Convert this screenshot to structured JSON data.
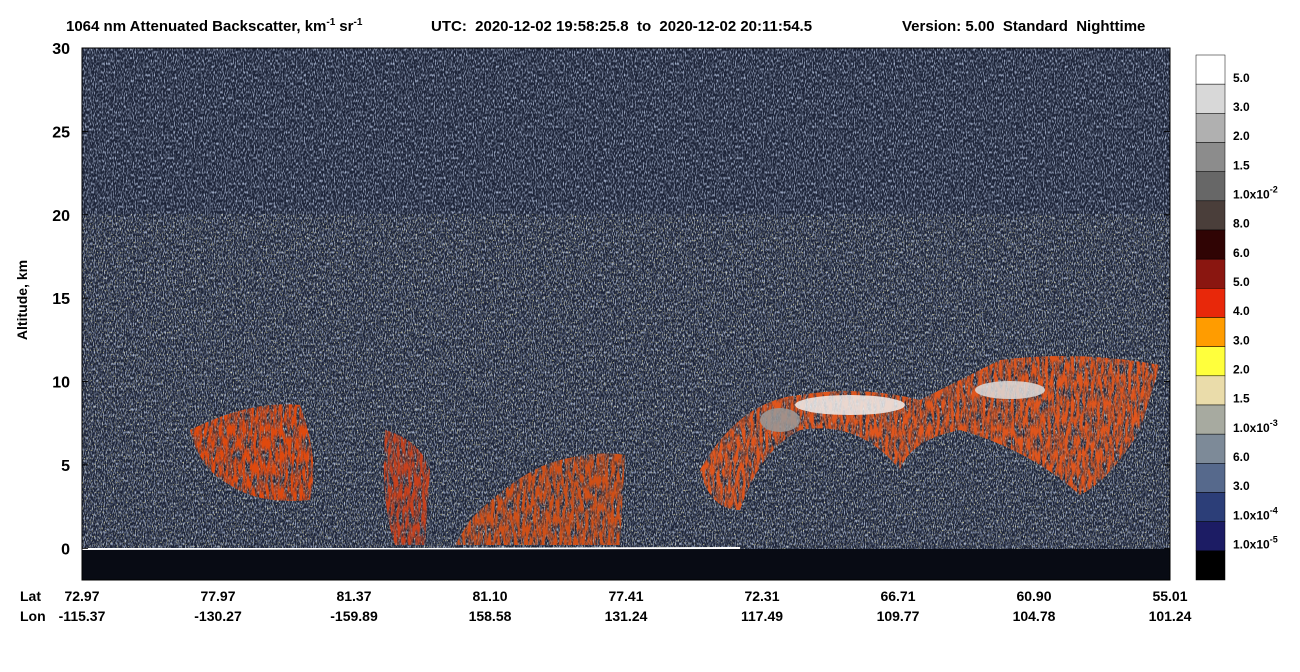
{
  "chart_data": {
    "type": "image",
    "title": {
      "text": "1064 nm Attenuated Backscatter, km",
      "exp1": "-1",
      "unit2": "sr",
      "exp2": "-1"
    },
    "time_range": "UTC:  2020-12-02 19:58:25.8  to  2020-12-02 20:11:54.5",
    "version": "Version: 5.00  Standard  Nighttime",
    "ylabel": "Altitude, km",
    "ylim": [
      -1.9,
      30
    ],
    "yticks": [
      0,
      5,
      10,
      15,
      20,
      25,
      30
    ],
    "x_row_labels": [
      "Lat",
      "Lon"
    ],
    "x_ticks": [
      {
        "lat": "72.97",
        "lon": "-115.37"
      },
      {
        "lat": "77.97",
        "lon": "-130.27"
      },
      {
        "lat": "81.37",
        "lon": "-159.89"
      },
      {
        "lat": "81.10",
        "lon": "158.58"
      },
      {
        "lat": "77.41",
        "lon": "131.24"
      },
      {
        "lat": "72.31",
        "lon": "117.49"
      },
      {
        "lat": "66.71",
        "lon": "109.77"
      },
      {
        "lat": "60.90",
        "lon": "104.78"
      },
      {
        "lat": "55.01",
        "lon": "101.24"
      }
    ],
    "colorbar": {
      "colors": [
        "#ffffff",
        "#d8d8d8",
        "#b0b0b0",
        "#8c8c8c",
        "#676767",
        "#4a3e3a",
        "#300404",
        "#8a1610",
        "#e8280a",
        "#ff9c00",
        "#ffff3c",
        "#eadcaa",
        "#a7aaa0",
        "#7d8a98",
        "#56698c",
        "#2c3e78",
        "#1c1c64",
        "#000000"
      ],
      "labels": [
        {
          "text": "5.0"
        },
        {
          "text": "3.0"
        },
        {
          "text": "2.0"
        },
        {
          "text": "1.5"
        },
        {
          "text": "1.0x10",
          "sup": "-2"
        },
        {
          "text": "8.0"
        },
        {
          "text": "6.0"
        },
        {
          "text": "5.0"
        },
        {
          "text": "4.0"
        },
        {
          "text": "3.0"
        },
        {
          "text": "2.0"
        },
        {
          "text": "1.5"
        },
        {
          "text": "1.0x10",
          "sup": "-3"
        },
        {
          "text": "6.0"
        },
        {
          "text": "3.0"
        },
        {
          "text": "1.0x10",
          "sup": "-4"
        },
        {
          "text": "1.0x10",
          "sup": "-5"
        }
      ]
    }
  }
}
